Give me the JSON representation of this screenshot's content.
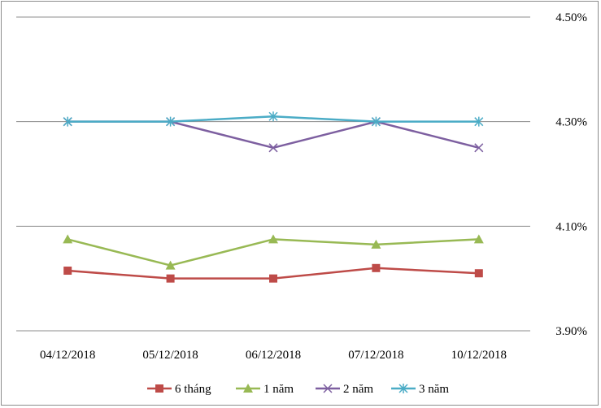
{
  "chart_data": {
    "type": "line",
    "title": "",
    "xlabel": "",
    "ylabel": "",
    "categories": [
      "04/12/2018",
      "05/12/2018",
      "06/12/2018",
      "07/12/2018",
      "10/12/2018"
    ],
    "y_ticks": [
      "4.50%",
      "4.30%",
      "4.10%",
      "3.90%"
    ],
    "y_tick_values": [
      4.5,
      4.3,
      4.1,
      3.9
    ],
    "ylim": [
      3.9,
      4.5
    ],
    "grid": true,
    "legend_position": "bottom",
    "series": [
      {
        "name": "6 tháng",
        "color": "#be4b48",
        "marker": "square",
        "values": [
          4.015,
          4.0,
          4.0,
          4.02,
          4.01
        ]
      },
      {
        "name": "1 năm",
        "color": "#98b954",
        "marker": "triangle",
        "values": [
          4.075,
          4.025,
          4.075,
          4.065,
          4.075
        ]
      },
      {
        "name": "2 năm",
        "color": "#7d5fa0",
        "marker": "x",
        "values": [
          4.3,
          4.3,
          4.25,
          4.3,
          4.25
        ]
      },
      {
        "name": "3 năm",
        "color": "#4bacc6",
        "marker": "star",
        "values": [
          4.3,
          4.3,
          4.31,
          4.3,
          4.3
        ]
      }
    ]
  }
}
